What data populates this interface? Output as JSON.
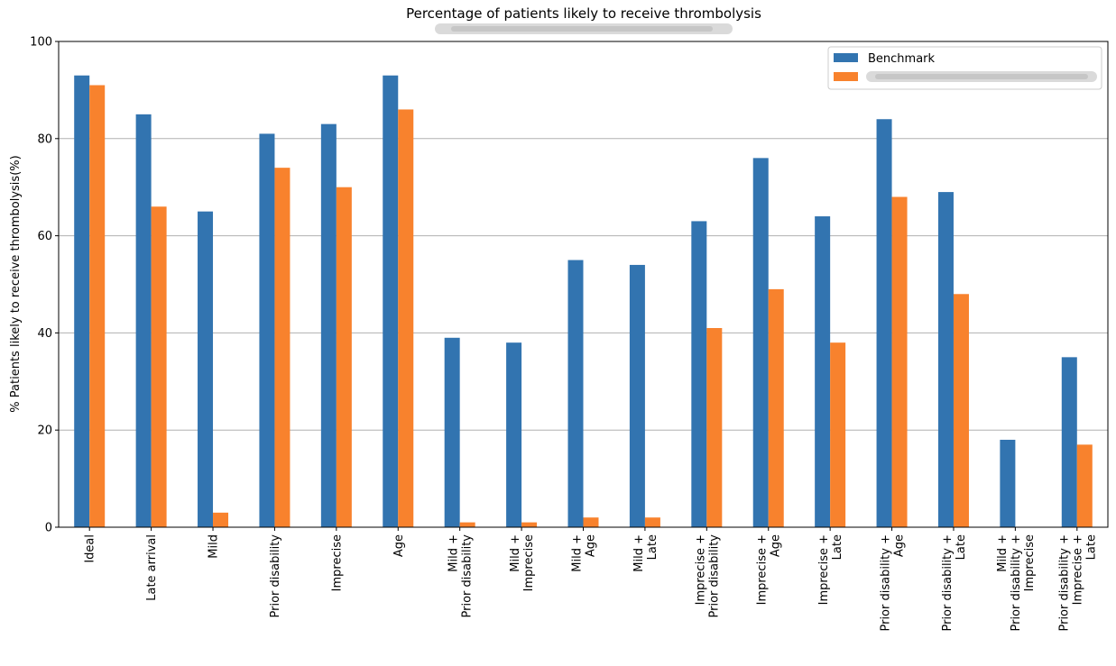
{
  "chart_data": {
    "type": "bar",
    "title": "Percentage of patients likely to receive thrombolysis",
    "xlabel": "",
    "ylabel": "% Patients likely to receive thrombolysis(%)",
    "ylim": [
      0,
      100
    ],
    "yticks": [
      0,
      20,
      40,
      60,
      80,
      100
    ],
    "grid": "y",
    "legend_position": "top-right",
    "categories": [
      [
        "Ideal"
      ],
      [
        "Late arrival"
      ],
      [
        "Mild"
      ],
      [
        "Prior disability"
      ],
      [
        "Imprecise"
      ],
      [
        "Age"
      ],
      [
        "Mild +",
        "Prior disability"
      ],
      [
        "Mild +",
        "Imprecise"
      ],
      [
        "Mild +",
        "Age"
      ],
      [
        "Mild +",
        "Late"
      ],
      [
        "Imprecise +",
        "Prior disability"
      ],
      [
        "Imprecise +",
        "Age"
      ],
      [
        "Imprecise +",
        "Late"
      ],
      [
        "Prior disability +",
        "Age"
      ],
      [
        "Prior disability +",
        "Late"
      ],
      [
        "Mild +",
        "Prior disability +",
        "Imprecise"
      ],
      [
        "Prior disability +",
        "Imprecise +",
        "Late"
      ]
    ],
    "series": [
      {
        "name": "Benchmark",
        "color": "#3274b0",
        "values": [
          93,
          85,
          65,
          81,
          83,
          93,
          39,
          38,
          55,
          54,
          63,
          76,
          64,
          84,
          69,
          18,
          35
        ]
      },
      {
        "name": "",
        "color": "#f8822d",
        "values": [
          91,
          66,
          3,
          74,
          70,
          86,
          1,
          1,
          2,
          2,
          41,
          49,
          38,
          68,
          48,
          0,
          17
        ]
      }
    ]
  }
}
